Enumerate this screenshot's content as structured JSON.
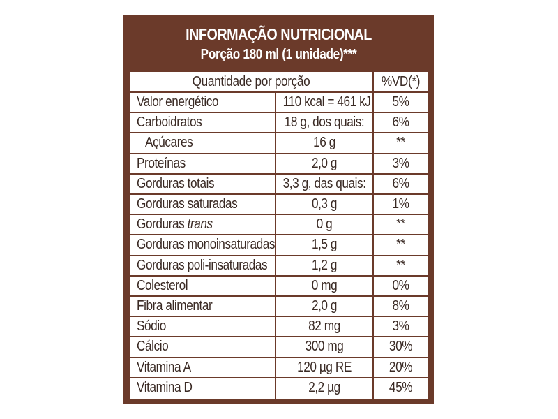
{
  "header": {
    "title": "INFORMAÇÃO NUTRICIONAL",
    "subtitle": "Porção 180 ml (1 unidade)***"
  },
  "columns": {
    "quantity_header": "Quantidade por porção",
    "dv_header": "%VD(*)"
  },
  "rows": [
    {
      "name": "Valor energético",
      "amount": "110 kcal = 461 kJ",
      "dv": "5%"
    },
    {
      "name": "Carboidratos",
      "amount": "18 g, dos quais:",
      "dv": "6%"
    },
    {
      "name": "Açúcares",
      "amount": "16 g",
      "dv": "**"
    },
    {
      "name": "Proteínas",
      "amount": "2,0 g",
      "dv": "3%"
    },
    {
      "name": "Gorduras totais",
      "amount": "3,3 g, das quais:",
      "dv": "6%"
    },
    {
      "name": "Gorduras saturadas",
      "amount": "0,3 g",
      "dv": "1%"
    },
    {
      "name": "Gorduras trans",
      "name_prefix": "Gorduras",
      "name_italic": "trans",
      "amount": "0 g",
      "dv": "**"
    },
    {
      "name": "Gorduras monoinsaturadas",
      "amount": "1,5 g",
      "dv": "**"
    },
    {
      "name": "Gorduras poli-insaturadas",
      "amount": "1,2 g",
      "dv": "**"
    },
    {
      "name": "Colesterol",
      "amount": "0 mg",
      "dv": "0%"
    },
    {
      "name": "Fibra alimentar",
      "amount": "2,0 g",
      "dv": "8%"
    },
    {
      "name": "Sódio",
      "amount": "82 mg",
      "dv": "3%"
    },
    {
      "name": "Cálcio",
      "amount": "300 mg",
      "dv": "30%"
    },
    {
      "name": "Vitamina A",
      "amount": "120 µg RE",
      "dv": "20%"
    },
    {
      "name": "Vitamina D",
      "amount": "2,2 µg",
      "dv": "45%"
    }
  ],
  "colors": {
    "brand_brown": "#6b3a2a",
    "text": "#3a2a24"
  }
}
